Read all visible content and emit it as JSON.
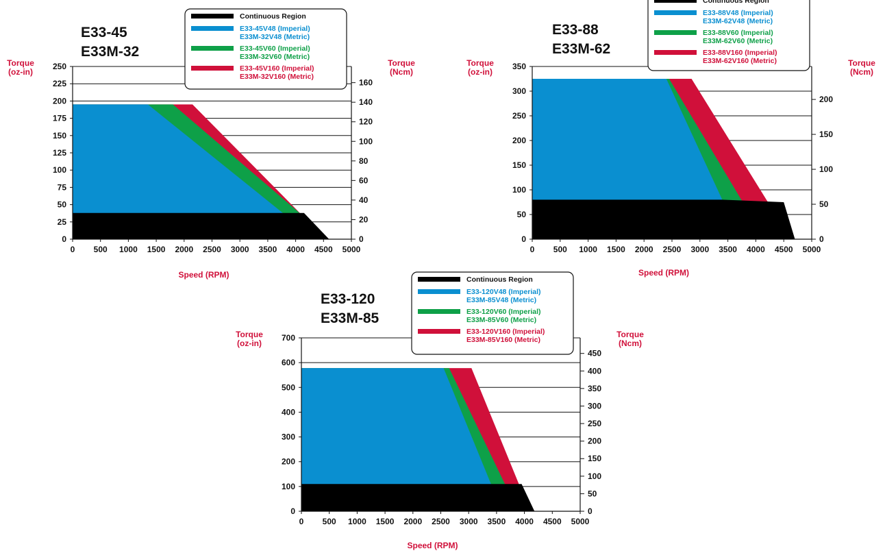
{
  "colors": {
    "continuous": "#000000",
    "v48": "#0a8fd0",
    "v60": "#0ea048",
    "v160": "#d0103a",
    "axis_label": "#d0103a"
  },
  "chart_data": [
    {
      "type": "area",
      "title_lines": [
        "E33-45",
        "E33M-32"
      ],
      "ylabel_left": [
        "Torque",
        "(oz-in)"
      ],
      "ylabel_right": [
        "Torque",
        "(Ncm)"
      ],
      "xlabel": "Speed (RPM)",
      "xlim": [
        0,
        5000
      ],
      "ylim_left": [
        0,
        250
      ],
      "xticks": [
        0,
        500,
        1000,
        1500,
        2000,
        2500,
        3000,
        3500,
        4000,
        4500,
        5000
      ],
      "yticks_left": [
        0,
        25,
        50,
        75,
        100,
        125,
        150,
        175,
        200,
        225,
        250
      ],
      "yticks_right": [
        0,
        20,
        40,
        60,
        80,
        100,
        120,
        140,
        160
      ],
      "right_scale_factor": 0.7062,
      "legend": {
        "placement": "top",
        "entries": [
          {
            "key": "continuous",
            "lines": [
              "Continuous Region"
            ]
          },
          {
            "key": "v48",
            "lines": [
              "E33-45V48 (Imperial)",
              "E33M-32V48 (Metric)"
            ]
          },
          {
            "key": "v60",
            "lines": [
              "E33-45V60 (Imperial)",
              "E33M-32V60 (Metric)"
            ]
          },
          {
            "key": "v160",
            "lines": [
              "E33-45V160 (Imperial)",
              "E33M-32V160 (Metric)"
            ]
          }
        ]
      },
      "series": [
        {
          "key": "v160",
          "points": [
            [
              0,
              195
            ],
            [
              2150,
              195
            ],
            [
              4100,
              36
            ],
            [
              4600,
              0
            ]
          ]
        },
        {
          "key": "v60",
          "points": [
            [
              0,
              195
            ],
            [
              1800,
              195
            ],
            [
              4100,
              36
            ],
            [
              4250,
              0
            ]
          ]
        },
        {
          "key": "v48",
          "points": [
            [
              0,
              195
            ],
            [
              1350,
              195
            ],
            [
              3800,
              36
            ],
            [
              3700,
              0
            ]
          ]
        },
        {
          "key": "continuous",
          "points": [
            [
              0,
              38
            ],
            [
              4150,
              38
            ],
            [
              4600,
              0
            ]
          ]
        }
      ]
    },
    {
      "type": "area",
      "title_lines": [
        "E33-88",
        "E33M-62"
      ],
      "ylabel_left": [
        "Torque",
        "(oz-in)"
      ],
      "ylabel_right": [
        "Torque",
        "(Ncm)"
      ],
      "xlabel": "Speed (RPM)",
      "xlim": [
        0,
        5000
      ],
      "ylim_left": [
        0,
        350
      ],
      "xticks": [
        0,
        500,
        1000,
        1500,
        2000,
        2500,
        3000,
        3500,
        4000,
        4500,
        5000
      ],
      "yticks_left": [
        0,
        50,
        100,
        150,
        200,
        250,
        300,
        350
      ],
      "yticks_right": [
        0,
        50,
        100,
        150,
        200
      ],
      "right_scale_factor": 0.7062,
      "legend": {
        "placement": "top",
        "entries": [
          {
            "key": "continuous",
            "lines": [
              "Continuous Region"
            ]
          },
          {
            "key": "v48",
            "lines": [
              "E33-88V48 (Imperial)",
              "E33M-62V48 (Metric)"
            ]
          },
          {
            "key": "v60",
            "lines": [
              "E33-88V60 (Imperial)",
              "E33M-62V60 (Metric)"
            ]
          },
          {
            "key": "v160",
            "lines": [
              "E33-88V160 (Imperial)",
              "E33M-62V160 (Metric)"
            ]
          }
        ]
      },
      "series": [
        {
          "key": "v160",
          "points": [
            [
              0,
              325
            ],
            [
              2850,
              325
            ],
            [
              4200,
              78
            ],
            [
              4700,
              0
            ]
          ]
        },
        {
          "key": "v60",
          "points": [
            [
              0,
              325
            ],
            [
              2450,
              325
            ],
            [
              3750,
              78
            ],
            [
              4100,
              0
            ]
          ]
        },
        {
          "key": "v48",
          "points": [
            [
              0,
              325
            ],
            [
              2400,
              325
            ],
            [
              3400,
              80
            ],
            [
              3680,
              0
            ]
          ]
        },
        {
          "key": "continuous",
          "points": [
            [
              0,
              80
            ],
            [
              3400,
              80
            ],
            [
              4500,
              75
            ],
            [
              4700,
              0
            ]
          ]
        }
      ]
    },
    {
      "type": "area",
      "title_lines": [
        "E33-120",
        "E33M-85"
      ],
      "ylabel_left": [
        "Torque",
        "(oz-in)"
      ],
      "ylabel_right": [
        "Torque",
        "(Ncm)"
      ],
      "xlabel": "Speed (RPM)",
      "xlim": [
        0,
        5000
      ],
      "ylim_left": [
        0,
        700
      ],
      "xticks": [
        0,
        500,
        1000,
        1500,
        2000,
        2500,
        3000,
        3500,
        4000,
        4500,
        5000
      ],
      "yticks_left": [
        0,
        100,
        200,
        300,
        400,
        500,
        600,
        700
      ],
      "yticks_right": [
        0,
        50,
        100,
        150,
        200,
        250,
        300,
        350,
        400,
        450
      ],
      "right_scale_factor": 0.7062,
      "legend": {
        "placement": "top",
        "entries": [
          {
            "key": "continuous",
            "lines": [
              "Continuous Region"
            ]
          },
          {
            "key": "v48",
            "lines": [
              "E33-120V48 (Imperial)",
              "E33M-85V48 (Metric)"
            ]
          },
          {
            "key": "v60",
            "lines": [
              "E33-120V60 (Imperial)",
              "E33M-85V60 (Metric)"
            ]
          },
          {
            "key": "v160",
            "lines": [
              "E33-120V160 (Imperial)",
              "E33M-85V160 (Metric)"
            ]
          }
        ]
      },
      "series": [
        {
          "key": "v160",
          "points": [
            [
              0,
              578
            ],
            [
              3050,
              578
            ],
            [
              3900,
              110
            ],
            [
              4180,
              0
            ]
          ]
        },
        {
          "key": "v60",
          "points": [
            [
              0,
              578
            ],
            [
              2650,
              578
            ],
            [
              3650,
              110
            ],
            [
              3850,
              0
            ]
          ]
        },
        {
          "key": "v48",
          "points": [
            [
              0,
              578
            ],
            [
              2550,
              578
            ],
            [
              3400,
              110
            ],
            [
              3650,
              0
            ]
          ]
        },
        {
          "key": "continuous",
          "points": [
            [
              0,
              110
            ],
            [
              3950,
              110
            ],
            [
              4180,
              0
            ]
          ]
        }
      ]
    }
  ]
}
